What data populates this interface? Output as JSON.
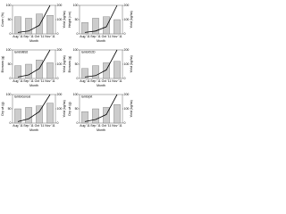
{
  "chart_data": [
    {
      "type": "bar",
      "y_label": "Cover (%)",
      "y2_label": "Yield (kg/ha)",
      "x_label": "Month",
      "categories": [
        "Aug '11",
        "Sep '11",
        "Oct '11",
        "Nov '11"
      ],
      "series": [
        {
          "name": "Cover",
          "color": "#cccccc",
          "values": [
            60,
            55,
            70,
            65
          ]
        },
        {
          "name": "Yield",
          "color": "#000000",
          "axis": "y2",
          "values": [
            10,
            20,
            60,
            200
          ]
        }
      ],
      "ylim": [
        0,
        100
      ],
      "yticks": [
        0,
        50,
        100
      ],
      "y2lim": [
        0,
        200
      ],
      "y2ticks": [
        0,
        100,
        200
      ]
    },
    {
      "type": "bar",
      "y_label": "Height (cm)",
      "y2_label": "Yield (kg/ha)",
      "x_label": "Month",
      "categories": [
        "Aug '11",
        "Sep '11",
        "Oct '11",
        "Nov '11"
      ],
      "series": [
        {
          "name": "Height",
          "color": "#cccccc",
          "values": [
            40,
            55,
            60,
            50
          ]
        },
        {
          "name": "Yield",
          "color": "#000000",
          "axis": "y2",
          "values": [
            10,
            20,
            50,
            200
          ]
        }
      ],
      "ylim": [
        0,
        100
      ],
      "yticks": [
        0,
        50,
        100
      ],
      "y2lim": [
        0,
        200
      ],
      "y2ticks": [
        0,
        100,
        200
      ]
    },
    {
      "type": "bar",
      "title": "lamb9892",
      "y_label": "Biomass (g)",
      "y2_label": "Yield (kg/ha)",
      "x_label": "Month",
      "categories": [
        "Aug '11",
        "Sep '11",
        "Oct '11",
        "Nov '11"
      ],
      "series": [
        {
          "name": "Biomass",
          "color": "#cccccc",
          "values": [
            45,
            50,
            65,
            55
          ]
        },
        {
          "name": "Yield",
          "color": "#000000",
          "axis": "y2",
          "values": [
            10,
            25,
            70,
            200
          ]
        }
      ],
      "ylim": [
        0,
        100
      ],
      "yticks": [
        0,
        50,
        100
      ],
      "y2lim": [
        0,
        200
      ],
      "y2ticks": [
        0,
        100,
        200
      ]
    },
    {
      "type": "bar",
      "title": "lamb/D2D",
      "y_label": "Biomass (g)",
      "y2_label": "Yield (kg/ha)",
      "x_label": "Month",
      "categories": [
        "Aug '11",
        "Sep '11",
        "Oct '11",
        "Nov '11"
      ],
      "series": [
        {
          "name": "Biomass",
          "color": "#cccccc",
          "values": [
            35,
            45,
            55,
            60
          ]
        },
        {
          "name": "Yield",
          "color": "#000000",
          "axis": "y2",
          "values": [
            10,
            20,
            60,
            200
          ]
        }
      ],
      "ylim": [
        0,
        100
      ],
      "yticks": [
        0,
        50,
        100
      ],
      "y2lim": [
        0,
        200
      ],
      "y2ticks": [
        0,
        100,
        200
      ]
    },
    {
      "type": "bar",
      "title": "lamb/cereal",
      "y_label": "Dry wt (g)",
      "y2_label": "Yield (kg/ha)",
      "x_label": "Month",
      "categories": [
        "Aug '11",
        "Sep '11",
        "Oct '11",
        "Nov '11"
      ],
      "series": [
        {
          "name": "Dry wt",
          "color": "#cccccc",
          "values": [
            50,
            55,
            60,
            70
          ]
        },
        {
          "name": "Yield",
          "color": "#000000",
          "axis": "y2",
          "values": [
            10,
            30,
            80,
            200
          ]
        }
      ],
      "ylim": [
        0,
        100
      ],
      "yticks": [
        0,
        50,
        100
      ],
      "y2lim": [
        0,
        200
      ],
      "y2ticks": [
        0,
        100,
        200
      ]
    },
    {
      "type": "bar",
      "title": "lamb/pit",
      "y_label": "Dry wt (g)",
      "y2_label": "Yield (kg/ha)",
      "x_label": "Month",
      "categories": [
        "Aug '11",
        "Sep '11",
        "Oct '11",
        "Nov '11"
      ],
      "series": [
        {
          "name": "Dry wt",
          "color": "#cccccc",
          "values": [
            40,
            50,
            55,
            65
          ]
        },
        {
          "name": "Yield",
          "color": "#000000",
          "axis": "y2",
          "values": [
            10,
            25,
            60,
            200
          ]
        }
      ],
      "ylim": [
        0,
        100
      ],
      "yticks": [
        0,
        50,
        100
      ],
      "y2lim": [
        0,
        200
      ],
      "y2ticks": [
        0,
        100,
        200
      ]
    }
  ]
}
